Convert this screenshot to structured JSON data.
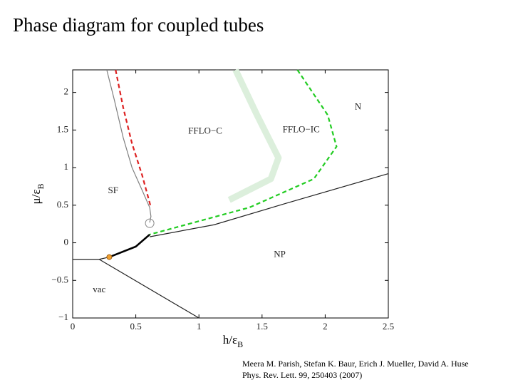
{
  "title": "Phase diagram for coupled tubes",
  "credits": [
    "Meera M. Parish, Stefan K. Baur, Erich J. Mueller, David A. Huse",
    "Phys. Rev. Lett. 99, 250403 (2007)"
  ],
  "chart_data": {
    "type": "line",
    "xlabel": "h/ε",
    "xlabel_subscript": "B",
    "ylabel": "μ/ε",
    "ylabel_subscript": "B",
    "xlim": [
      0,
      2.5
    ],
    "ylim": [
      -1,
      2.3
    ],
    "xticks": [
      0,
      0.5,
      1,
      1.5,
      2,
      2.5
    ],
    "yticks": [
      {
        "value": -1,
        "label": "−1"
      },
      {
        "value": -0.5,
        "label": "−0.5"
      },
      0,
      0.5,
      1,
      1.5,
      2
    ],
    "series": [
      {
        "color": "#dd2222",
        "style": "dashed",
        "x": [
          0.34,
          0.4,
          0.47,
          0.55,
          0.62
        ],
        "values": [
          2.3,
          1.8,
          1.32,
          0.9,
          0.47
        ]
      },
      {
        "color": "#808080",
        "style": "solid",
        "x": [
          0.27,
          0.33,
          0.4,
          0.47,
          0.55,
          0.61,
          0.62,
          0.61
        ],
        "values": [
          2.3,
          1.9,
          1.4,
          1.0,
          0.7,
          0.47,
          0.35,
          0.27
        ]
      },
      {
        "color": "#dcefdc",
        "style": "thick",
        "x": [
          1.29,
          1.46,
          1.63,
          1.57,
          1.24
        ],
        "values": [
          2.3,
          1.7,
          1.13,
          0.85,
          0.57
        ]
      },
      {
        "color": "#22cc22",
        "style": "dashed",
        "x": [
          1.78,
          2.02,
          2.09,
          1.91,
          1.4,
          0.61
        ],
        "values": [
          2.3,
          1.7,
          1.28,
          0.85,
          0.47,
          0.11
        ]
      },
      {
        "color": "#222222",
        "style": "solid",
        "x": [
          0.61,
          1.12,
          1.68,
          2.5
        ],
        "values": [
          0.08,
          0.24,
          0.52,
          0.92
        ]
      },
      {
        "color": "#000000",
        "style": "bold",
        "x": [
          0.29,
          0.5,
          0.61
        ],
        "values": [
          -0.19,
          -0.05,
          0.11
        ]
      },
      {
        "color": "#222222",
        "style": "solid",
        "x": [
          0,
          0.21,
          0.29
        ],
        "values": [
          -0.22,
          -0.22,
          -0.19
        ]
      },
      {
        "color": "#222222",
        "style": "solid",
        "x": [
          0.21,
          1.0
        ],
        "values": [
          -0.22,
          -1.0
        ]
      },
      {
        "color": "#888888",
        "style": "open-marker",
        "x": [
          0.61
        ],
        "values": [
          0.26
        ]
      },
      {
        "color": "#f0a030",
        "style": "dot-marker",
        "x": [
          0.29
        ],
        "values": [
          -0.19
        ]
      }
    ],
    "annotations": [
      {
        "text": "SF",
        "x": 0.32,
        "y": 0.69
      },
      {
        "text": "FFLO−C",
        "x": 1.05,
        "y": 1.48
      },
      {
        "text": "FFLO−IC",
        "x": 1.81,
        "y": 1.5
      },
      {
        "text": "N",
        "x": 2.26,
        "y": 1.8
      },
      {
        "text": "NP",
        "x": 1.64,
        "y": -0.16
      },
      {
        "text": "vac",
        "x": 0.21,
        "y": -0.63
      }
    ]
  }
}
